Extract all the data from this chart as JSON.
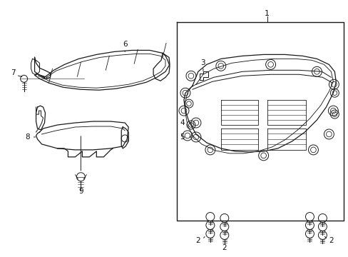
{
  "background_color": "#ffffff",
  "line_color": "#1a1a1a",
  "text_color": "#111111",
  "fig_width": 4.89,
  "fig_height": 3.6,
  "dpi": 100
}
